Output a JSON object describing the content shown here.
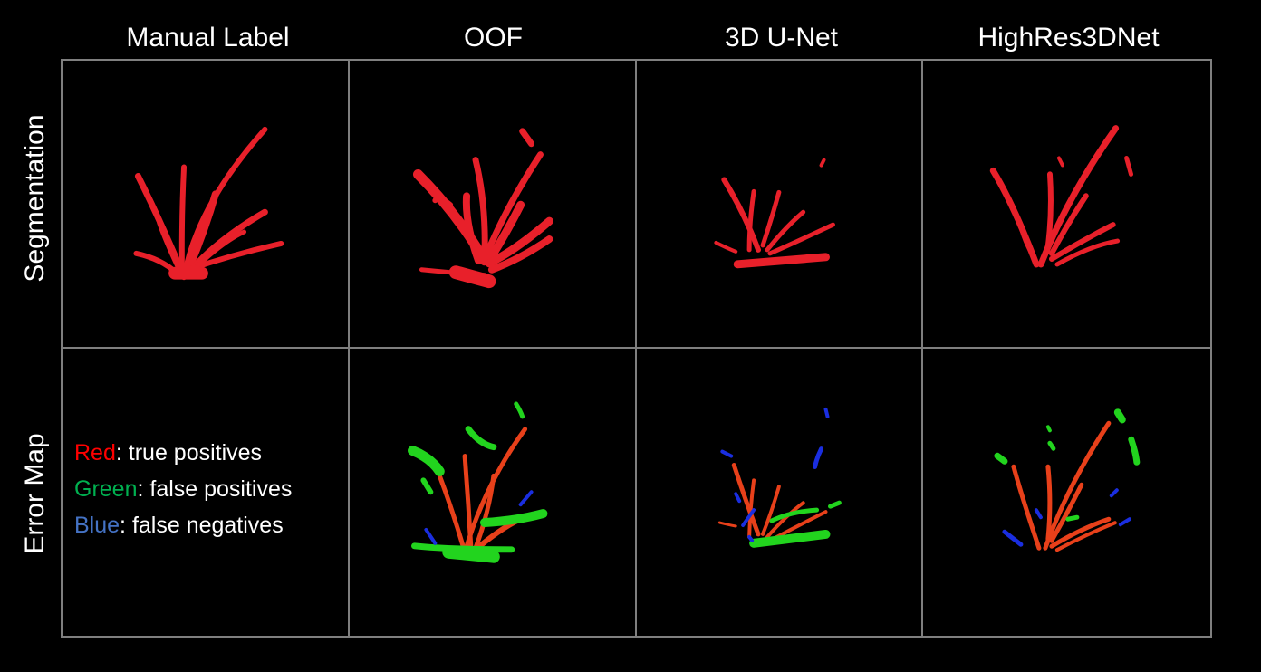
{
  "columns": [
    "Manual Label",
    "OOF",
    "3D U-Net",
    "HighRes3DNet"
  ],
  "rows": [
    "Segmentation",
    "Error Map"
  ],
  "legend": {
    "red_word": "Red",
    "red_text": ": true positives",
    "green_word": "Green",
    "green_text": ": false positives",
    "blue_word": "Blue",
    "blue_text": ": false negatives"
  },
  "colors": {
    "background": "#000000",
    "grid_border": "#7f7f7f",
    "segmentation_red": "#e8202a",
    "true_positive": "#e8401a",
    "false_positive": "#22d41e",
    "false_negative": "#1a2ee0",
    "legend_red": "#ff0000",
    "legend_green": "#00b050",
    "legend_blue": "#4472c4"
  }
}
